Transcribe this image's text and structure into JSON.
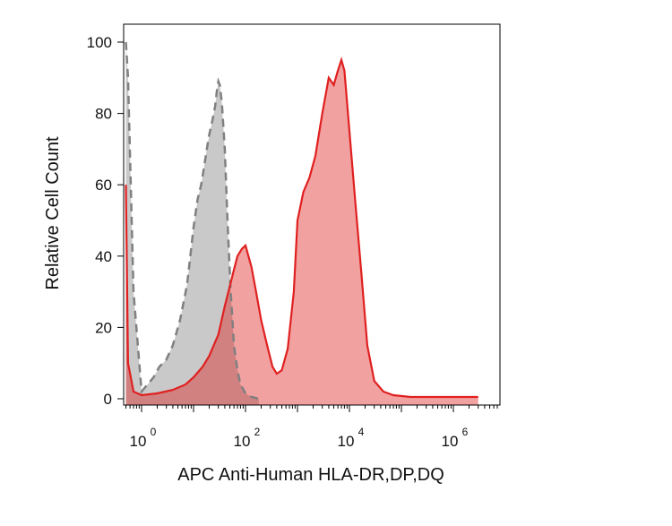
{
  "chart_data": {
    "type": "area",
    "xlabel": "APC Anti-Human HLA-DR,DP,DQ",
    "ylabel": "Relative Cell Count",
    "x_scale": "log",
    "xlim": [
      1,
      3000000
    ],
    "ylim": [
      0,
      100
    ],
    "grid": false,
    "x_tick_labels": [
      {
        "base": "10",
        "exp": "0",
        "value": 1
      },
      {
        "base": "10",
        "exp": "2",
        "value": 100
      },
      {
        "base": "10",
        "exp": "4",
        "value": 10000
      },
      {
        "base": "10",
        "exp": "6",
        "value": 1000000
      }
    ],
    "y_tick_labels": [
      "0",
      "20",
      "40",
      "60",
      "80",
      "100"
    ],
    "y_tick_values": [
      0,
      20,
      40,
      60,
      80,
      100
    ],
    "colors": {
      "control_fill": "#c9c9c9",
      "control_stroke": "#808080",
      "stained_fill": "#f7a3a3",
      "stained_stroke": "#e02020",
      "overlap_fill": "#c98080"
    },
    "series": [
      {
        "style": "dashed-gray",
        "x": [
          0.5,
          0.55,
          0.7,
          1,
          1.3,
          1.7,
          2.2,
          3,
          4,
          5.5,
          7.5,
          10,
          12,
          14,
          16,
          18,
          20,
          23,
          26,
          28,
          30,
          32,
          35,
          40,
          45,
          52,
          60,
          70,
          80,
          100,
          130,
          180
        ],
        "y": [
          100,
          90,
          30,
          2,
          4,
          6,
          9,
          11,
          15,
          22,
          32,
          48,
          56,
          60,
          65,
          70,
          74,
          78,
          82,
          86,
          89,
          88,
          83,
          70,
          50,
          30,
          15,
          8,
          4,
          1.5,
          0.5,
          0
        ]
      },
      {
        "style": "solid-red",
        "x": [
          0.5,
          0.55,
          0.7,
          1,
          2,
          4,
          7,
          10,
          15,
          20,
          30,
          40,
          55,
          70,
          85,
          100,
          130,
          160,
          200,
          260,
          330,
          400,
          500,
          650,
          850,
          1000,
          1300,
          1700,
          2200,
          3000,
          4000,
          5000,
          6000,
          7000,
          8000,
          10000,
          13000,
          17000,
          22000,
          30000,
          45000,
          70000,
          150000,
          3000000
        ],
        "y": [
          60,
          10,
          2,
          1,
          1.5,
          2.5,
          4,
          6,
          9,
          12,
          18,
          26,
          34,
          40,
          42,
          43,
          37,
          30,
          22,
          15,
          9,
          7,
          8,
          14,
          30,
          50,
          58,
          62,
          68,
          80,
          90,
          88,
          92,
          95,
          92,
          75,
          55,
          35,
          15,
          5,
          2,
          1,
          0.5,
          0.5
        ]
      }
    ]
  }
}
